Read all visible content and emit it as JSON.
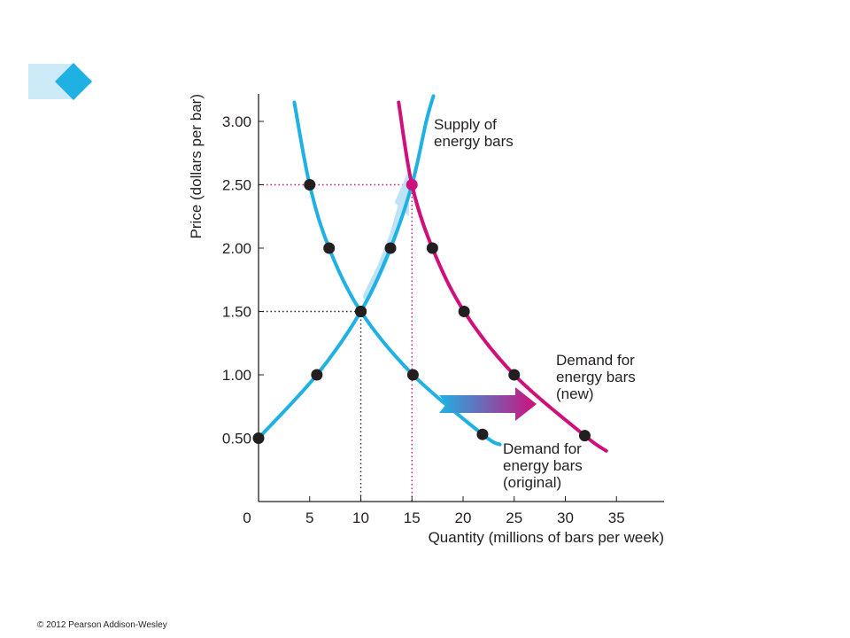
{
  "chart_data": {
    "type": "line",
    "xlabel": "Quantity (millions of bars per week)",
    "ylabel": "Price (dollars per bar)",
    "xlim": [
      0,
      40
    ],
    "ylim": [
      0,
      3.3
    ],
    "x_ticks": [
      {
        "value": 5,
        "label": "5"
      },
      {
        "value": 10,
        "label": "10"
      },
      {
        "value": 15,
        "label": "15",
        "highlight": true
      },
      {
        "value": 20,
        "label": "20"
      },
      {
        "value": 25,
        "label": "25"
      },
      {
        "value": 30,
        "label": "30"
      },
      {
        "value": 35,
        "label": "35"
      }
    ],
    "y_ticks": [
      {
        "value": 0.5,
        "label": "0.50"
      },
      {
        "value": 1.0,
        "label": "1.00"
      },
      {
        "value": 1.5,
        "label": "1.50"
      },
      {
        "value": 2.0,
        "label": "2.00"
      },
      {
        "value": 2.5,
        "label": "2.50",
        "highlight": true
      },
      {
        "value": 3.0,
        "label": "3.00"
      }
    ],
    "origin_label": "0",
    "series": [
      {
        "name": "Supply of energy bars",
        "label_lines": [
          "Supply of",
          "energy bars"
        ],
        "color": "#1fb1e4",
        "curve": [
          [
            0,
            0.5
          ],
          [
            5.7,
            1.0
          ],
          [
            10,
            1.5
          ],
          [
            12.9,
            2.0
          ],
          [
            15,
            2.5
          ],
          [
            16.4,
            3.0
          ],
          [
            17.1,
            3.2
          ]
        ],
        "points": [
          [
            0,
            0.5
          ],
          [
            5.7,
            1.0
          ],
          [
            10,
            1.5
          ],
          [
            12.9,
            2.0
          ]
        ]
      },
      {
        "name": "Demand for energy bars (original)",
        "label_lines": [
          "Demand for",
          "energy bars",
          "(original)"
        ],
        "color": "#1fb1e4",
        "curve": [
          [
            3.5,
            3.15
          ],
          [
            5,
            2.5
          ],
          [
            6.9,
            2.0
          ],
          [
            10,
            1.5
          ],
          [
            15.1,
            1.0
          ],
          [
            21.9,
            0.53
          ],
          [
            23.6,
            0.45
          ]
        ],
        "points": [
          [
            5,
            2.5
          ],
          [
            6.9,
            2.0
          ],
          [
            10,
            1.5
          ],
          [
            15.1,
            1.0
          ],
          [
            21.9,
            0.53
          ]
        ]
      },
      {
        "name": "Demand for energy bars (new)",
        "label_lines": [
          "Demand for",
          "energy bars",
          "(new)"
        ],
        "color": "#cf0f7c",
        "curve": [
          [
            13.7,
            3.15
          ],
          [
            15,
            2.5
          ],
          [
            17,
            2.0
          ],
          [
            20.1,
            1.5
          ],
          [
            25,
            1.0
          ],
          [
            31.9,
            0.52
          ],
          [
            34,
            0.4
          ]
        ],
        "points": [
          [
            17,
            2.0
          ],
          [
            20.1,
            1.5
          ],
          [
            25,
            1.0
          ],
          [
            31.9,
            0.52
          ]
        ]
      }
    ],
    "equilibria": [
      {
        "x": 10,
        "y": 1.5,
        "color": "#231f20"
      },
      {
        "x": 15,
        "y": 2.5,
        "color": "#cf0f7c"
      }
    ],
    "shift_arrow": {
      "from": "#1fb1e4",
      "to": "#cf0f7c"
    }
  },
  "footer": {
    "copyright": "© 2012 Pearson Addison-Wesley"
  }
}
